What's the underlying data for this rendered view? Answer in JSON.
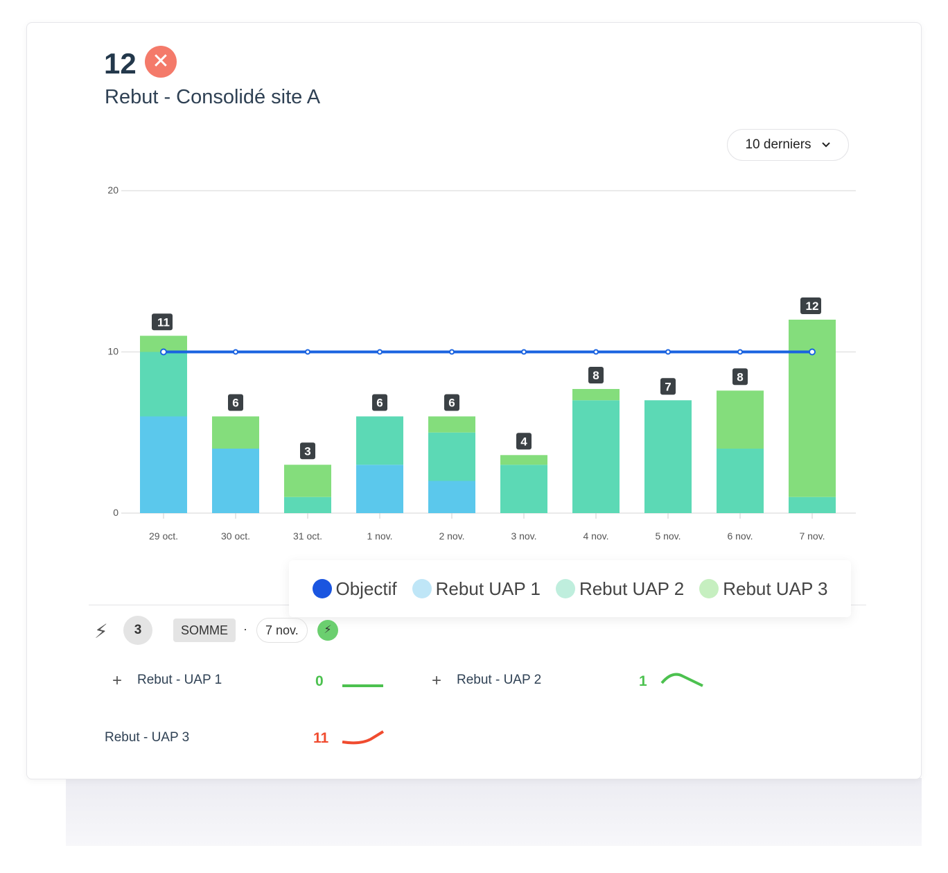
{
  "header": {
    "value": "12",
    "status_icon": "close-icon",
    "status_color": "#f47a6a",
    "title": "Rebut - Consolidé site A"
  },
  "period_select": {
    "value": "10 derniers"
  },
  "chart_data": {
    "type": "bar",
    "stacked": true,
    "categories": [
      "29 oct.",
      "30 oct.",
      "31 oct.",
      "1 nov.",
      "2 nov.",
      "3 nov.",
      "4 nov.",
      "5 nov.",
      "6 nov.",
      "7 nov."
    ],
    "series": [
      {
        "name": "Rebut UAP 1",
        "color": "#5bc8ec",
        "values": [
          6,
          4,
          0,
          3,
          2,
          0,
          0,
          0,
          0,
          0
        ]
      },
      {
        "name": "Rebut UAP 2",
        "color": "#5cd9b5",
        "values": [
          4,
          0,
          1,
          3,
          3,
          3,
          7,
          7,
          4,
          1
        ]
      },
      {
        "name": "Rebut UAP 3",
        "color": "#84dd7c",
        "values": [
          1,
          2,
          2,
          0,
          1,
          0.6,
          0.7,
          0,
          3.6,
          11
        ]
      }
    ],
    "line": {
      "name": "Objectif",
      "color": "#1a63e0",
      "values": [
        10,
        10,
        10,
        10,
        10,
        10,
        10,
        10,
        10,
        10
      ]
    },
    "data_labels": [
      "11",
      "6",
      "3",
      "6",
      "6",
      "4",
      "8",
      "7",
      "8",
      "12"
    ],
    "yticks": [
      "0",
      "10",
      "20"
    ],
    "ylim": [
      0,
      20
    ],
    "grid": true,
    "legend_position": "bottom"
  },
  "legend": [
    {
      "name": "Objectif",
      "color": "#1a55e0"
    },
    {
      "name": "Rebut UAP 1",
      "color": "#bfe6f7"
    },
    {
      "name": "Rebut UAP 2",
      "color": "#bfeedd"
    },
    {
      "name": "Rebut UAP 3",
      "color": "#c6efc0"
    }
  ],
  "footer": {
    "count": "3",
    "aggregation": "SOMME",
    "separator": "·",
    "date": "7 nov."
  },
  "indicators": [
    {
      "label": "Rebut - UAP 1",
      "value": "0",
      "color": "#4cc14f",
      "expandable": true
    },
    {
      "label": "Rebut - UAP 2",
      "value": "1",
      "color": "#4cc14f",
      "expandable": true
    },
    {
      "label": "Rebut - UAP 3",
      "value": "11",
      "color": "#f04b2f",
      "expandable": false
    }
  ]
}
